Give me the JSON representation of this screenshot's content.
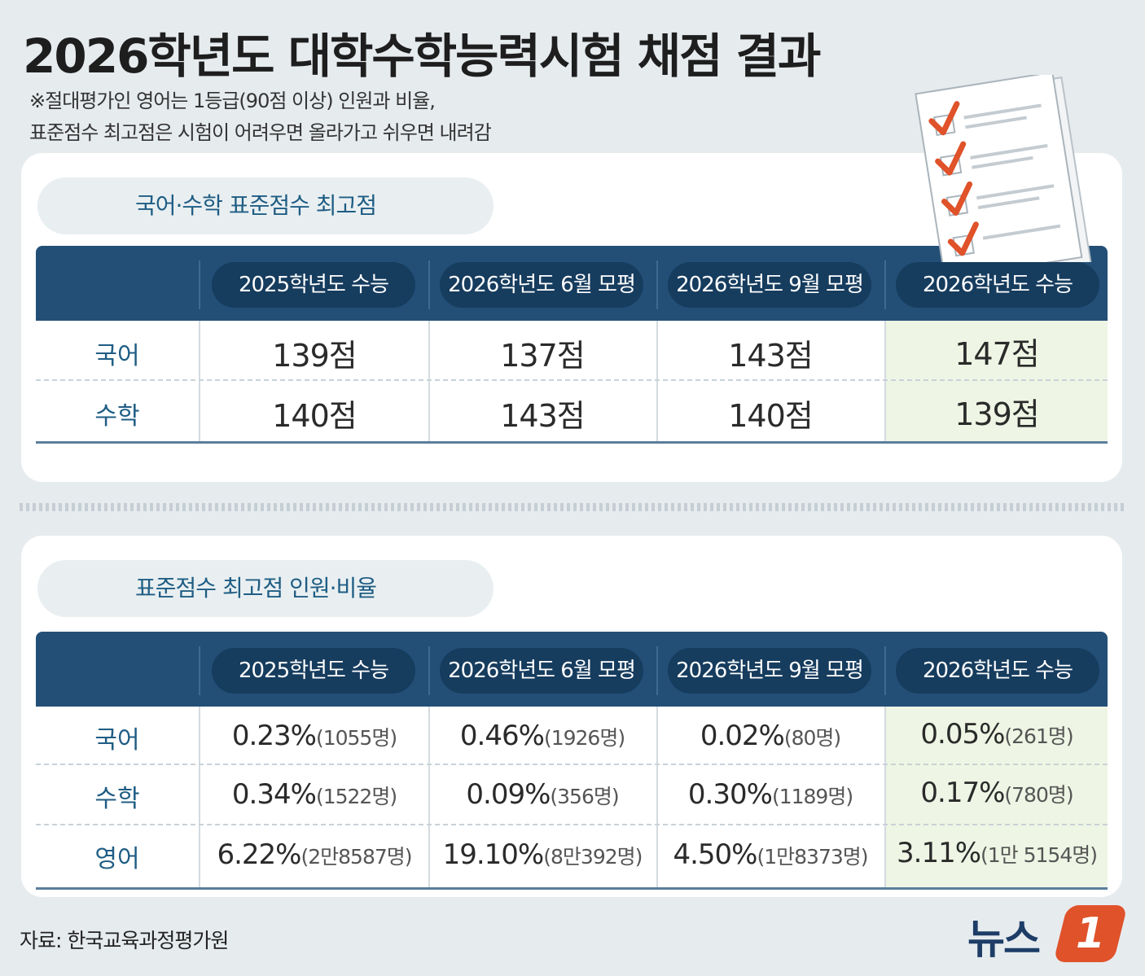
{
  "title": "2026학년도 대학수학능력시험 채점 결과",
  "notes": [
    "※절대평가인 영어는 1등급(90점 이상) 인원과 비율,",
    "표준점수 최고점은 시험이 어려우면 올라가고 쉬우면 내려감"
  ],
  "columns": [
    "2025학년도 수능",
    "2026학년도 6월 모평",
    "2026학년도 9월 모평",
    "2026학년도 수능"
  ],
  "table1": {
    "title": "국어·수학 표준점수 최고점",
    "rows": [
      {
        "label": "국어",
        "values": [
          "139점",
          "137점",
          "143점",
          "147점"
        ]
      },
      {
        "label": "수학",
        "values": [
          "140점",
          "143점",
          "140점",
          "139점"
        ]
      }
    ]
  },
  "table2": {
    "title": "표준점수 최고점 인원·비율",
    "rows": [
      {
        "label": "국어",
        "pct": [
          "0.23%",
          "0.46%",
          "0.02%",
          "0.05%"
        ],
        "cnt": [
          "(1055명)",
          "(1926명)",
          "(80명)",
          "(261명)"
        ]
      },
      {
        "label": "수학",
        "pct": [
          "0.34%",
          "0.09%",
          "0.30%",
          "0.17%"
        ],
        "cnt": [
          "(1522명)",
          "(356명)",
          "(1189명)",
          "(780명)"
        ]
      },
      {
        "label": "영어",
        "pct": [
          "6.22%",
          "19.10%",
          "4.50%",
          "3.11%"
        ],
        "cnt": [
          "(2만8587명)",
          "(8만392명)",
          "(1만8373명)",
          "(1만 5154명)"
        ]
      }
    ]
  },
  "source": "자료: 한국교육과정평가원",
  "logo": {
    "text": "뉴스",
    "badge": "1"
  },
  "colors": {
    "header": "#234f77",
    "header_pill": "#163c5e",
    "highlight": "#eef5e4",
    "label": "#1f5d84",
    "logo_badge": "#e0522a"
  },
  "icons": [
    "checklist-icon"
  ]
}
